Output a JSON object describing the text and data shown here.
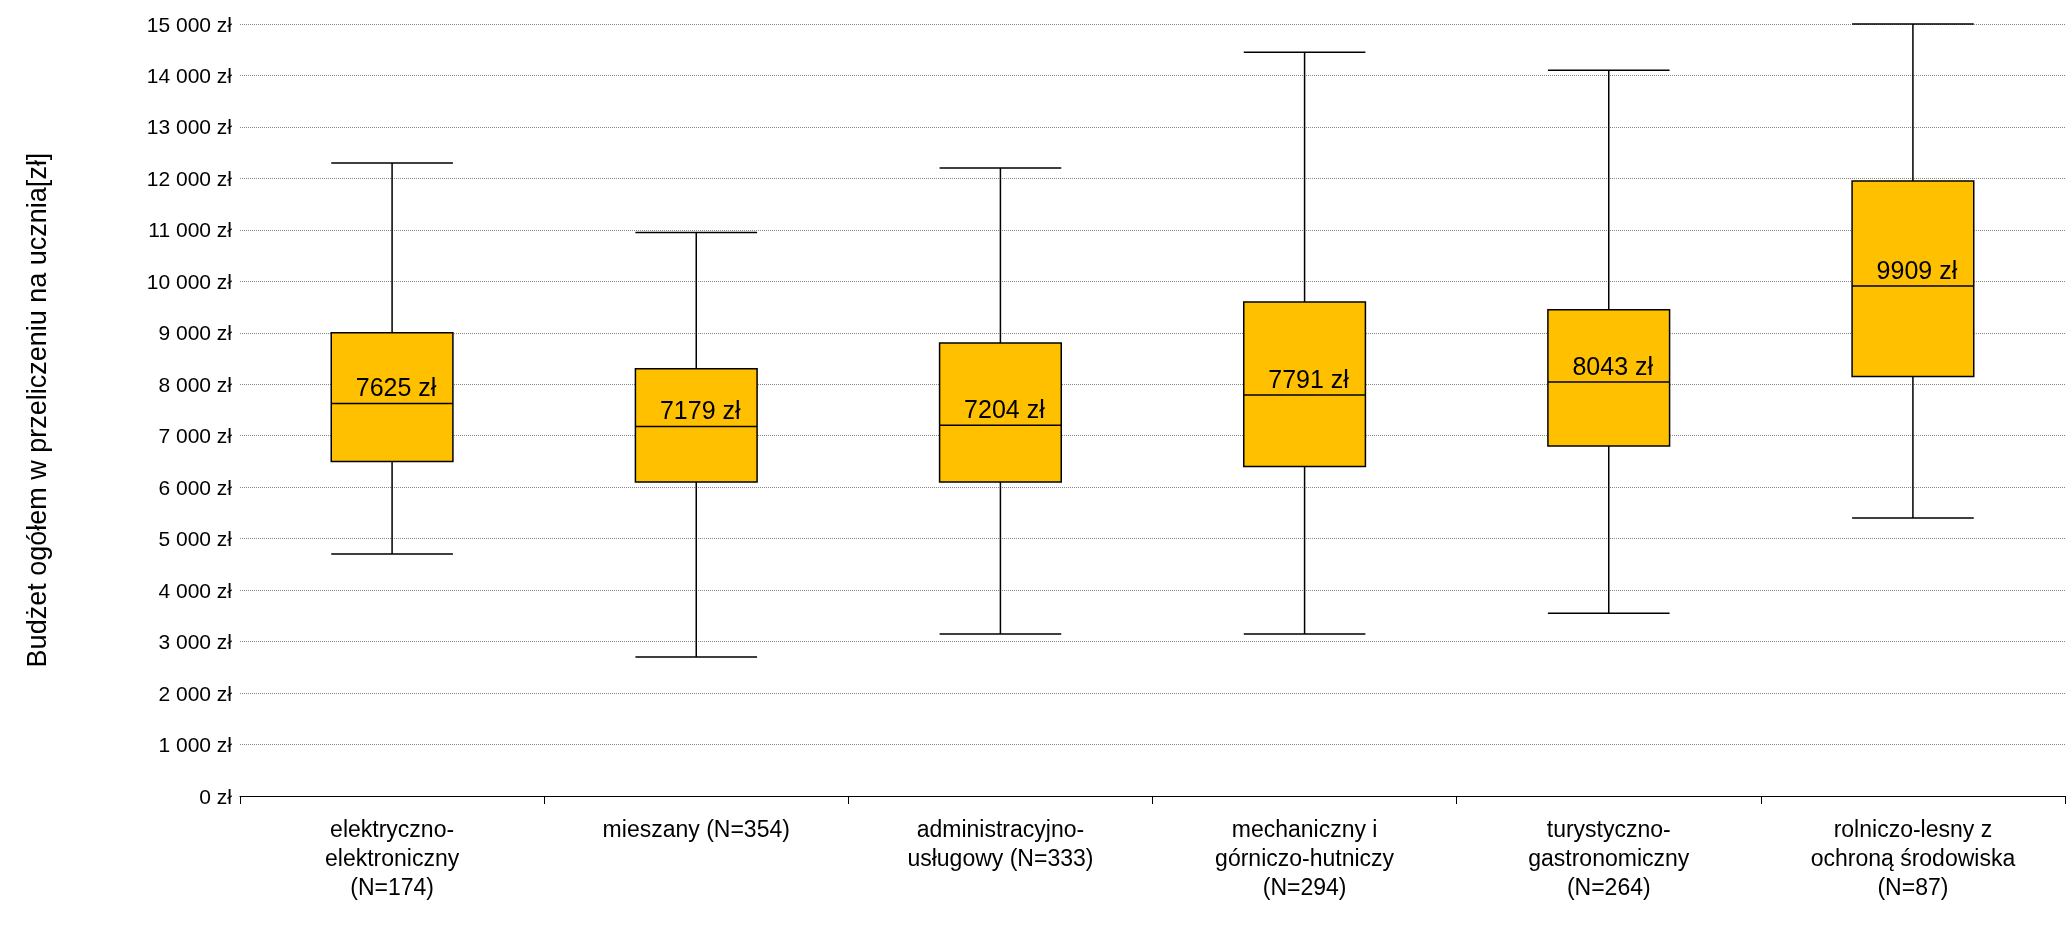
{
  "chart_data": {
    "type": "box",
    "ylabel": "Budżet ogółem w przeliczeniu na ucznia[zł]",
    "categories": [
      "elektryczno-\nelektroniczny\n(N=174)",
      "mieszany (N=354)",
      "administracyjno-\nusługowy (N=333)",
      "mechaniczny i\ngórniczo-hutniczy\n(N=294)",
      "turystyczno-\ngastronomiczny\n(N=264)",
      "rolniczo-lesny z\nochroną środowiska\n(N=87)"
    ],
    "series": [
      {
        "color": "#ffc000",
        "boxes": [
          {
            "low": 4700,
            "q1": 6500,
            "median": 7625,
            "q3": 9000,
            "high": 12300
          },
          {
            "low": 2700,
            "q1": 6100,
            "median": 7179,
            "q3": 8300,
            "high": 10950
          },
          {
            "low": 3150,
            "q1": 6100,
            "median": 7204,
            "q3": 8800,
            "high": 12200
          },
          {
            "low": 3150,
            "q1": 6400,
            "median": 7791,
            "q3": 9600,
            "high": 14450
          },
          {
            "low": 3550,
            "q1": 6800,
            "median": 8043,
            "q3": 9450,
            "high": 14100
          },
          {
            "low": 5400,
            "q1": 8150,
            "median": 9909,
            "q3": 11950,
            "high": 15000
          }
        ],
        "value_labels": [
          "7625 zł",
          "7179 zł",
          "7204 zł",
          "7791 zł",
          "8043 zł",
          "9909 zł"
        ]
      }
    ],
    "ylim": [
      0,
      15000
    ],
    "yticks": [
      {
        "value": 0,
        "label": "0 zł"
      },
      {
        "value": 1000,
        "label": "1 000 zł"
      },
      {
        "value": 2000,
        "label": "2 000 zł"
      },
      {
        "value": 3000,
        "label": "3 000 zł"
      },
      {
        "value": 4000,
        "label": "4 000 zł"
      },
      {
        "value": 5000,
        "label": "5 000 zł"
      },
      {
        "value": 6000,
        "label": "6 000 zł"
      },
      {
        "value": 7000,
        "label": "7 000 zł"
      },
      {
        "value": 8000,
        "label": "8 000 zł"
      },
      {
        "value": 9000,
        "label": "9 000 zł"
      },
      {
        "value": 10000,
        "label": "10 000 zł"
      },
      {
        "value": 11000,
        "label": "11 000 zł"
      },
      {
        "value": 12000,
        "label": "12 000 zł"
      },
      {
        "value": 13000,
        "label": "13 000 zł"
      },
      {
        "value": 14000,
        "label": "14 000 zł"
      },
      {
        "value": 15000,
        "label": "15 000 zł"
      }
    ],
    "grid": "y"
  }
}
